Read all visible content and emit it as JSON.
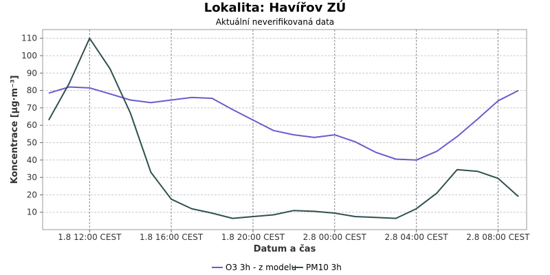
{
  "chart_data": {
    "type": "line",
    "title": "Lokalita: Havířov ZÚ",
    "subtitle": "Aktuální neverifikovaná data",
    "xlabel": "Datum a čas",
    "ylabel": "Koncentrace [µg·m⁻³]",
    "ylim": [
      0,
      115
    ],
    "yticks": [
      10,
      20,
      30,
      40,
      50,
      60,
      70,
      80,
      90,
      100,
      110
    ],
    "x_tick_labels": [
      "1.8 12:00 CEST",
      "1.8 16:00 CEST",
      "1.8 20:00 CEST",
      "2.8 00:00 CEST",
      "2.8 04:00 CEST",
      "2.8 08:00 CEST"
    ],
    "x_tick_hours": [
      12,
      16,
      20,
      24,
      28,
      32
    ],
    "xlim_hours": [
      9.7,
      33.4
    ],
    "x_hours": [
      10,
      11,
      12,
      13,
      14,
      15,
      16,
      17,
      18,
      19,
      20,
      21,
      22,
      23,
      24,
      25,
      26,
      27,
      28,
      29,
      30,
      31,
      32,
      33
    ],
    "grid": true,
    "legend_position": "bottom",
    "series": [
      {
        "name": "O3 3h - z modelu",
        "color": "#6a5acd",
        "values": [
          78.5,
          82,
          81.5,
          78,
          74.5,
          73,
          74.5,
          76,
          75.5,
          69,
          63,
          57,
          54.5,
          53,
          54.5,
          50.5,
          44.5,
          40.5,
          40,
          45,
          53.5,
          63.5,
          74,
          80
        ]
      },
      {
        "name": "PM10 3h",
        "color": "#2f4f4f",
        "values": [
          63,
          84,
          110,
          92.5,
          67,
          33,
          17.5,
          12,
          9.5,
          6.5,
          7.5,
          8.5,
          11,
          10.5,
          9.5,
          7.5,
          7,
          6.5,
          12,
          21,
          34.5,
          33.5,
          29.5,
          19
        ]
      }
    ]
  }
}
